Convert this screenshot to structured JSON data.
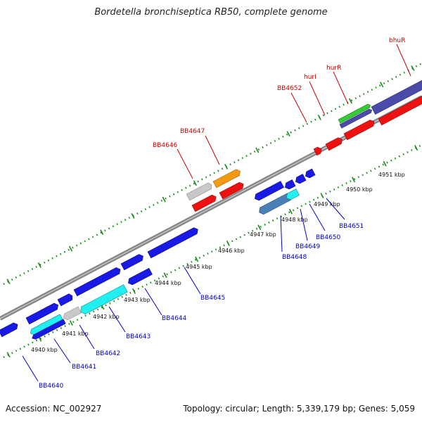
{
  "title": "Bordetella bronchiseptica RB50, complete genome",
  "footer": {
    "accession": "Accession: NC_002927",
    "topology": "Topology: circular; Length: 5,339,179 bp; Genes: 5,059"
  },
  "scale_labels": [
    "4940 kbp",
    "4941 kbp",
    "4942 kbp",
    "4943 kbp",
    "4944 kbp",
    "4945 kbp",
    "4946 kbp",
    "4947 kbp",
    "4948 kbp",
    "4949 kbp",
    "4950 kbp",
    "4951 kbp"
  ],
  "gene_labels_top": [
    "BB4646",
    "BB4647",
    "BB4652",
    "hurI",
    "hurR",
    "bhuR"
  ],
  "gene_labels_bottom": [
    "BB4640",
    "BB4641",
    "BB4642",
    "BB4643",
    "BB4644",
    "BB4645",
    "BB4648",
    "BB4649",
    "BB4650",
    "BB4651"
  ],
  "colors": {
    "gene_blue": "#1a1ae6",
    "gene_red": "#ee1111",
    "gene_cyan": "#22f0f0",
    "gene_grey": "#c8c8c8",
    "gene_orange": "#f29a12",
    "gene_green": "#33cc33",
    "gene_darkblue": "#4a4aa8",
    "gene_steelblue": "#4a7fb8",
    "backbone": "#888888",
    "tick": "#1a8a1a",
    "label_red": "#cc0000",
    "label_blue": "#0000cc"
  }
}
